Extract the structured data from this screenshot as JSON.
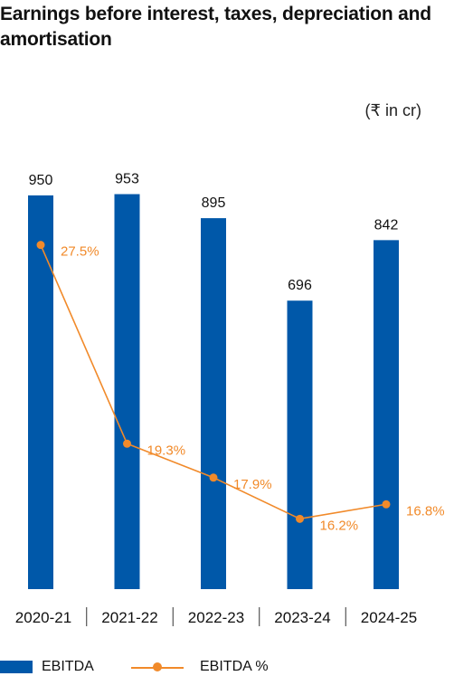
{
  "title": "Earnings before interest, taxes, depreciation and amortisation",
  "unit_note": "(₹ in cr)",
  "colors": {
    "bar": "#0058a9",
    "line": "#f18a2a"
  },
  "legend": {
    "bar_label": "EBITDA",
    "line_label": "EBITDA %"
  },
  "chart_data": {
    "type": "bar",
    "categories": [
      "2020-21",
      "2021-22",
      "2022-23",
      "2023-24",
      "2024-25"
    ],
    "series": [
      {
        "name": "EBITDA",
        "type": "bar",
        "values": [
          950,
          953,
          895,
          696,
          842
        ]
      },
      {
        "name": "EBITDA %",
        "type": "line",
        "values": [
          27.5,
          19.3,
          17.9,
          16.2,
          16.8
        ],
        "labels": [
          "27.5%",
          "19.3%",
          "17.9%",
          "16.2%",
          "16.8%"
        ]
      }
    ],
    "ylim": [
      0,
      1000
    ],
    "secondary_ylim": [
      13.3,
      30.4
    ],
    "grid": false,
    "legend_position": "bottom"
  }
}
